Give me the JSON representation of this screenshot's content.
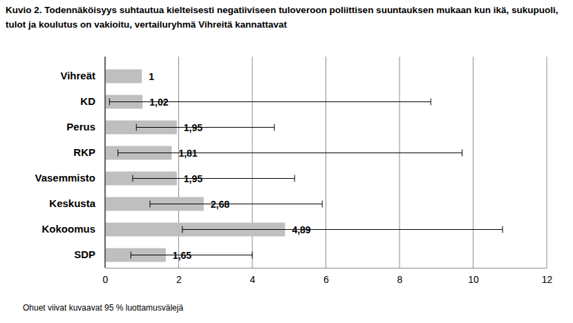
{
  "chart_data": {
    "type": "bar",
    "orientation": "horizontal",
    "title": "Kuvio 2. Todennäköisyys suhtautua kielteisesti negatiiviseen tuloveroon poliittisen suuntauksen mukaan kun ikä, sukupuoli, tulot ja koulutus on vakioitu, vertailuryhmä Vihreitä kannattavat",
    "caption": "Ohuet viivat kuvaavat 95 % luottamusvälejä",
    "categories": [
      "Vihreät",
      "KD",
      "Perus",
      "RKP",
      "Vasemmisto",
      "Keskusta",
      "Kokoomus",
      "SDP"
    ],
    "values": [
      1,
      1.02,
      1.95,
      1.81,
      1.95,
      2.68,
      4.89,
      1.65
    ],
    "value_labels": [
      "1",
      "1,02",
      "1,95",
      "1,81",
      "1,95",
      "2,68",
      "4,89",
      "1,65"
    ],
    "ci_low": [
      null,
      0.12,
      0.85,
      0.35,
      0.75,
      1.22,
      2.1,
      0.7
    ],
    "ci_high": [
      null,
      8.85,
      4.6,
      9.7,
      5.15,
      5.9,
      10.8,
      4.0
    ],
    "color": "#bfbfbf",
    "data_labels": true,
    "grid": true,
    "xlim": [
      0,
      12
    ],
    "xticks": [
      0,
      2,
      4,
      6,
      8,
      10,
      12
    ]
  }
}
